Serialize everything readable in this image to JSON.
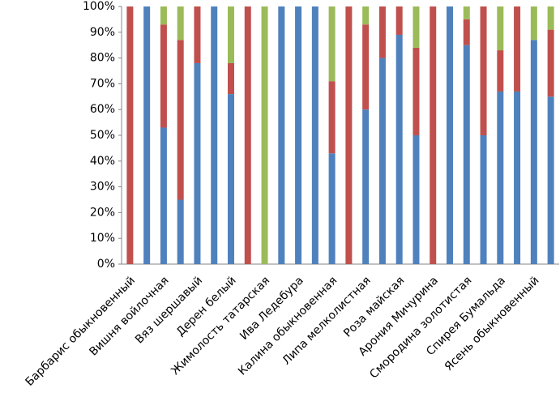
{
  "chart_data": {
    "type": "stacked-bar",
    "categories": [
      "Барбарис обыкновенный",
      null,
      "Вишня войлочная",
      null,
      "Вяз шершавый",
      null,
      "Дерен белый",
      null,
      "Жимолость татарская",
      null,
      "Ива Ледебура",
      null,
      "Калина обыкновенная",
      null,
      "Липа мелколистная",
      null,
      "Роза майская",
      null,
      "Арония Мичурина",
      null,
      "Смородина золотистая",
      null,
      "Спирея Бумальда",
      null,
      "Ясень обыкновенный",
      null
    ],
    "series": [
      {
        "color": "#4f81bd",
        "values": [
          0,
          100,
          53,
          25,
          78,
          100,
          66,
          0,
          0,
          100,
          100,
          100,
          43,
          0,
          60,
          80,
          89,
          50,
          0,
          100,
          85,
          50,
          67,
          67,
          87,
          65
        ]
      },
      {
        "color": "#c0504d",
        "values": [
          100,
          0,
          40,
          62,
          22,
          0,
          12,
          100,
          0,
          0,
          0,
          0,
          28,
          100,
          33,
          20,
          11,
          34,
          100,
          0,
          10,
          50,
          16,
          33,
          0,
          26
        ]
      },
      {
        "color": "#9bbb59",
        "values": [
          0,
          0,
          7,
          13,
          0,
          0,
          22,
          0,
          100,
          0,
          0,
          0,
          29,
          0,
          7,
          0,
          0,
          16,
          0,
          0,
          5,
          0,
          17,
          0,
          13,
          9
        ]
      }
    ],
    "ylim": [
      0,
      100
    ],
    "yticks": [
      {
        "value": 0,
        "label": "0%"
      },
      {
        "value": 10,
        "label": "10%"
      },
      {
        "value": 20,
        "label": "20%"
      },
      {
        "value": 30,
        "label": "30%"
      },
      {
        "value": 40,
        "label": "40%"
      },
      {
        "value": 50,
        "label": "50%"
      },
      {
        "value": 60,
        "label": "60%"
      },
      {
        "value": 70,
        "label": "70%"
      },
      {
        "value": 80,
        "label": "80%"
      },
      {
        "value": 90,
        "label": "90%"
      },
      {
        "value": 100,
        "label": "100%"
      }
    ]
  }
}
